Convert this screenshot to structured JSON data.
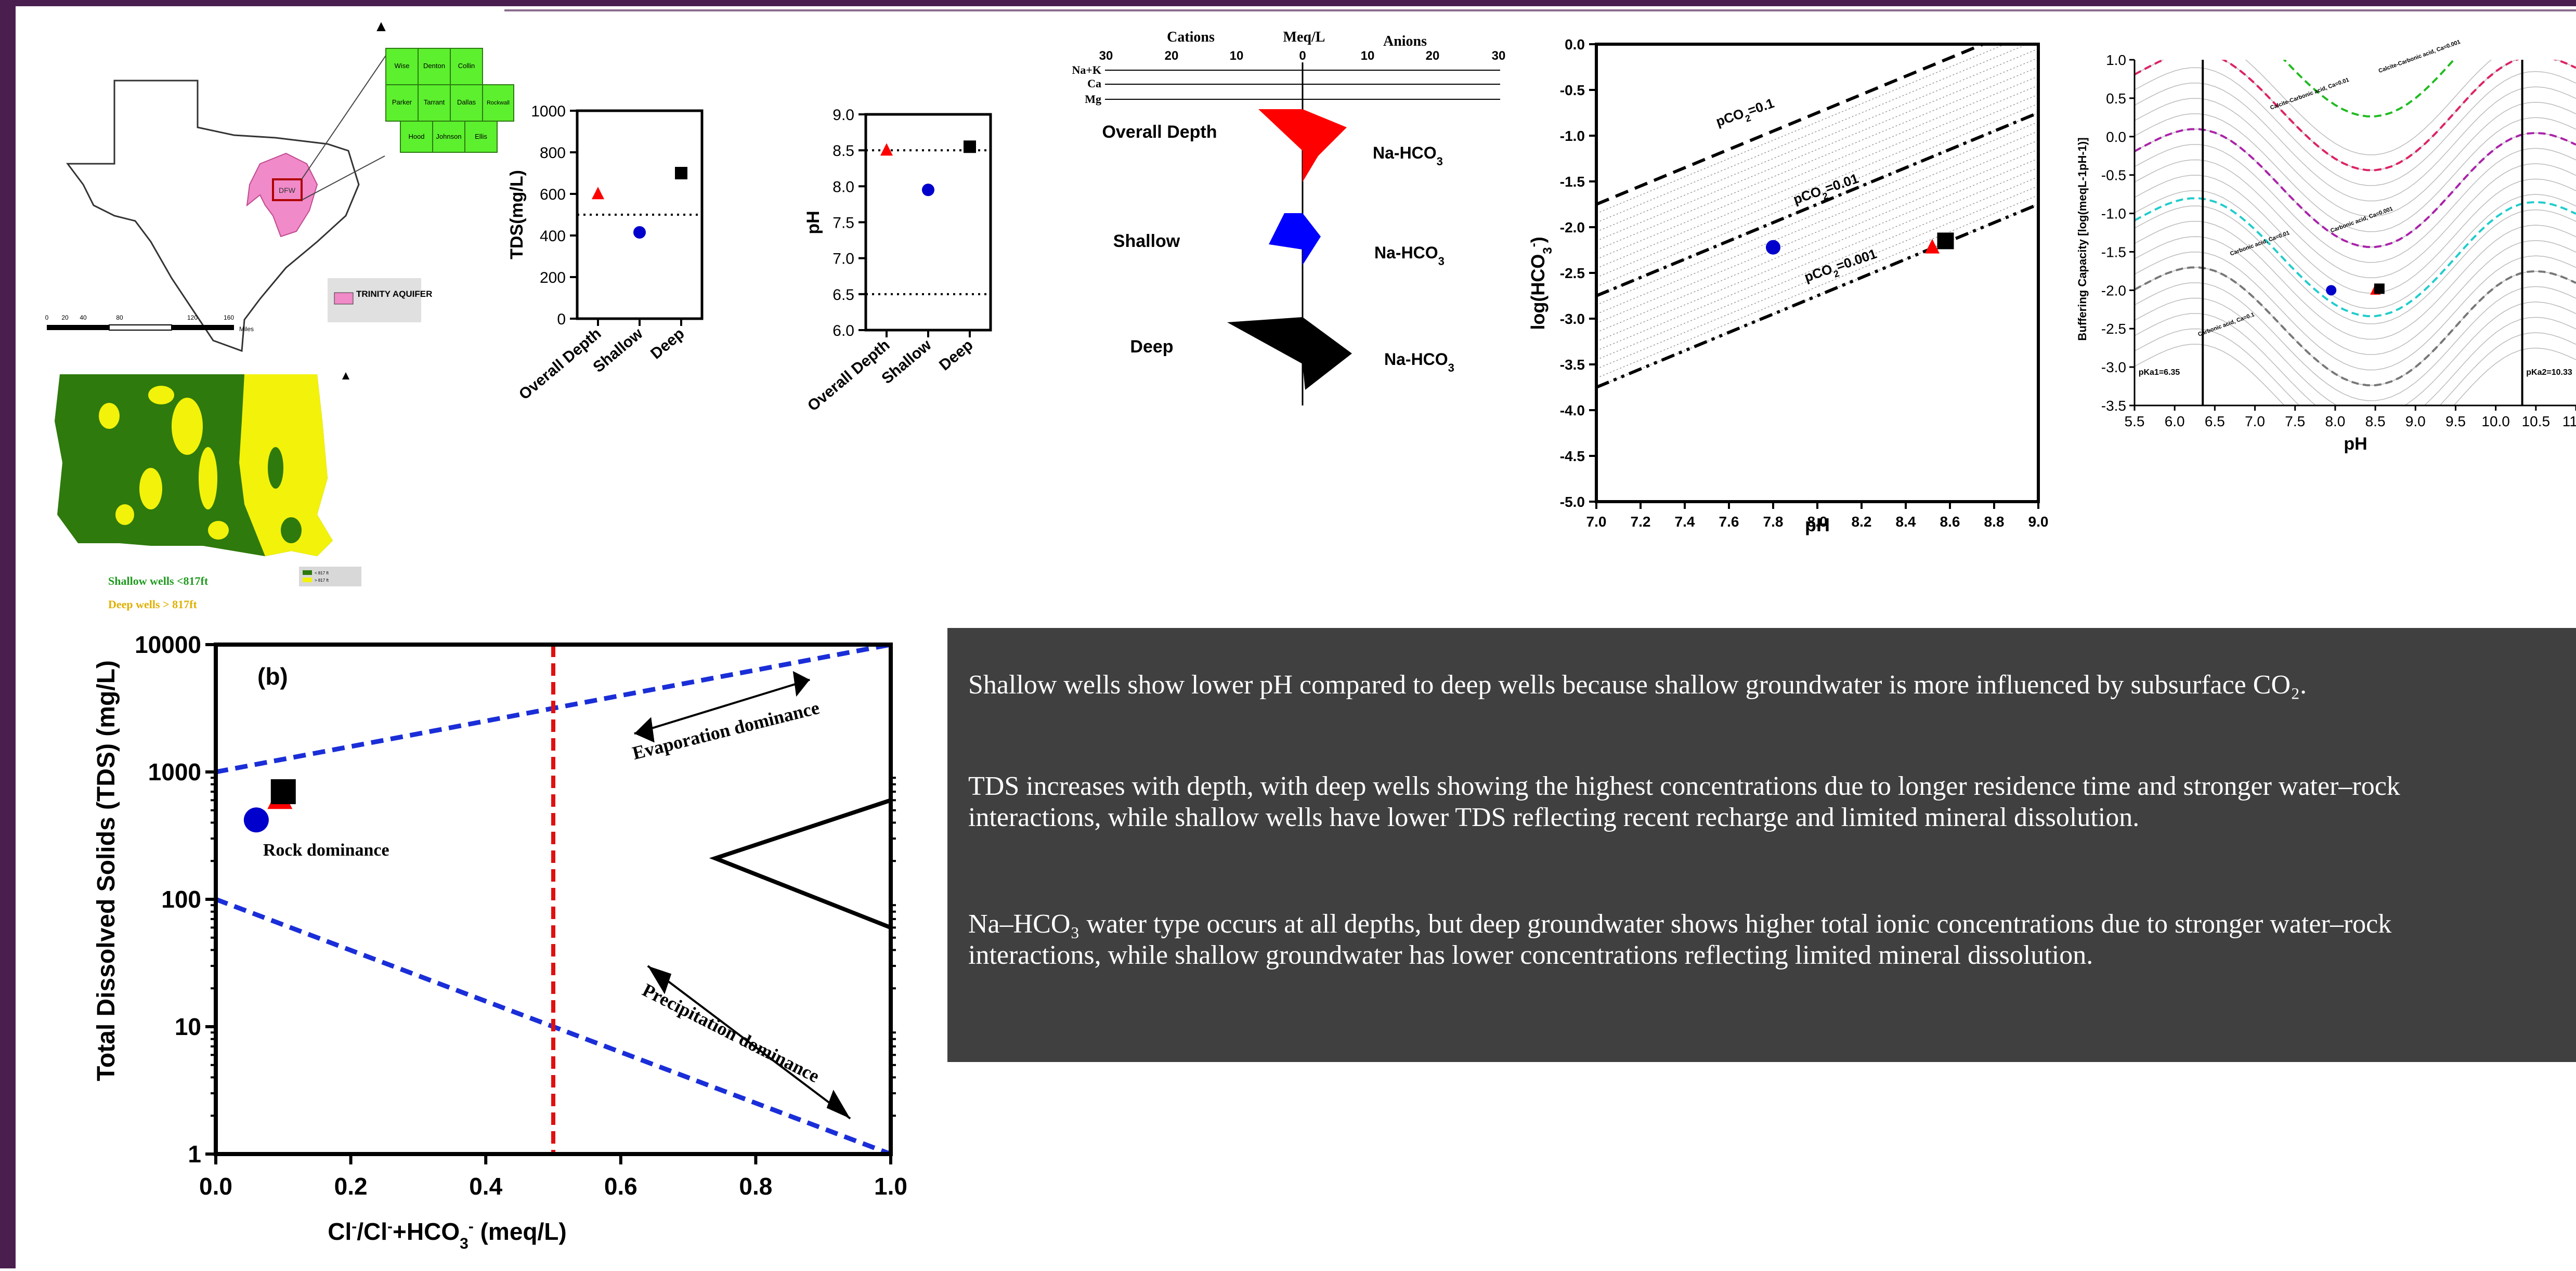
{
  "map": {
    "legend_label": "TRINITY AQUIFER",
    "north_symbol": "▲",
    "county_labels": [
      "Wise",
      "Denton",
      "Collin",
      "Parker",
      "Tarrant",
      "Dallas",
      "Hood",
      "Johnson",
      "Ellis",
      "Rockwall"
    ],
    "scale_ticks": [
      "0",
      "20",
      "40",
      "80",
      "120",
      "160"
    ],
    "scale_unit": "Miles",
    "highlight_label": "DFW",
    "colors": {
      "texas": "#ffffff",
      "aquifer": "#f08ac8",
      "counties": "#5cf02e"
    }
  },
  "depth_map": {
    "shallow_label": "Shallow wells <817ft",
    "deep_label": "Deep wells > 817ft",
    "legend_items": [
      "< 817 ft",
      "> 817 ft"
    ],
    "colors": {
      "shallow": "#2e7a0c",
      "deep": "#f2f20a"
    }
  },
  "tds_panel": {
    "ylabel": "TDS(mg/L)",
    "yticks": [
      "0",
      "200",
      "400",
      "600",
      "800",
      "1000"
    ],
    "categories": [
      "Overall Depth",
      "Shallow",
      "Deep"
    ]
  },
  "ph_panel": {
    "ylabel": "pH",
    "yticks": [
      "6.0",
      "6.5",
      "7.0",
      "7.5",
      "8.0",
      "8.5",
      "9.0"
    ],
    "categories": [
      "Overall Depth",
      "Shallow",
      "Deep"
    ]
  },
  "stiff": {
    "cations_label": "Cations",
    "meq_label": "Meq/L",
    "anions_label": "Anions",
    "scale_ticks": [
      "30",
      "20",
      "10",
      "0",
      "10",
      "20",
      "30"
    ],
    "ions_left": [
      "Na+K",
      "Ca",
      "Mg"
    ],
    "rows": [
      {
        "label": "Overall Depth",
        "type": "Na-HCO",
        "sub": "3",
        "color": "#ff0000"
      },
      {
        "label": "Shallow",
        "type": "Na-HCO",
        "sub": "3",
        "color": "#0000ff"
      },
      {
        "label": "Deep",
        "type": "Na-HCO",
        "sub": "3",
        "color": "#000000"
      }
    ]
  },
  "pco2_panel": {
    "ylabel": "log(HCO",
    "ylabel_sub": "3",
    "ylabel_sup": "-",
    "ylabel_end": ")",
    "xlabel": "pH",
    "line_labels": [
      "pCO",
      "pCO",
      "pCO"
    ],
    "line_values": [
      "=0.1",
      "=0.01",
      "=0.001"
    ],
    "line_sub": "2"
  },
  "buffer_panel": {
    "ylabel": "Buffering Capacity [log(meqL-1pH-1)]",
    "xlabel": "pH",
    "pka1": "pKa1=6.35",
    "pka2": "pKa2=10.33",
    "curve_labels": [
      "Calcite-Carbonic acid, Ca=0.001",
      "Calcite-Carbonic acid, Ca=0.01",
      "Carbonic acid, Ca=0.001",
      "Carbonic acid, Ca=0.01",
      "Carbonic acid, Ca=0.1"
    ]
  },
  "gibbs": {
    "panel_label": "(b)",
    "ylabel": "Total Dissolved Solids (TDS) (mg/L)",
    "xlabel_parts": [
      "Cl",
      "-",
      "/Cl",
      "-",
      "+HCO",
      "3",
      "-",
      " (meq/L)"
    ],
    "annotations": {
      "evaporation": "Evaporation dominance",
      "rock": "Rock dominance",
      "precipitation": "Precipitation dominance"
    }
  },
  "notes": [
    {
      "text": "Shallow wells show lower pH compared to deep wells because shallow groundwater is more influenced by  subsurface CO₂."
    },
    {
      "line1": "TDS increases with depth, with deep wells showing the highest concentrations due to longer residence time and stronger water–rock",
      "line2": "interactions, while shallow wells have lower TDS reflecting recent recharge and limited mineral dissolution."
    },
    {
      "line1": "Na–HCO₃ water type occurs at all depths, but deep groundwater shows higher total ionic concentrations due to stronger water–rock",
      "line2": "interactions, while shallow groundwater has lower concentrations reflecting limited mineral dissolution."
    }
  ],
  "chart_data": [
    {
      "type": "scatter",
      "title": "",
      "xlabel": "",
      "ylabel": "TDS(mg/L)",
      "categories": [
        "Overall Depth",
        "Shallow",
        "Deep"
      ],
      "series": [
        {
          "name": "Overall Depth",
          "marker": "triangle",
          "color": "#ff0000",
          "values": [
            600
          ]
        },
        {
          "name": "Shallow",
          "marker": "circle",
          "color": "#0000cc",
          "values": [
            415
          ]
        },
        {
          "name": "Deep",
          "marker": "square",
          "color": "#000000",
          "values": [
            700
          ]
        }
      ],
      "reference_line": 500,
      "ylim": [
        0,
        1000
      ]
    },
    {
      "type": "scatter",
      "title": "",
      "xlabel": "",
      "ylabel": "pH",
      "categories": [
        "Overall Depth",
        "Shallow",
        "Deep"
      ],
      "series": [
        {
          "name": "Overall Depth",
          "marker": "triangle",
          "color": "#ff0000",
          "values": [
            8.5
          ]
        },
        {
          "name": "Shallow",
          "marker": "circle",
          "color": "#0000cc",
          "values": [
            7.95
          ]
        },
        {
          "name": "Deep",
          "marker": "square",
          "color": "#000000",
          "values": [
            8.55
          ]
        }
      ],
      "reference_lines": [
        6.5,
        8.5
      ],
      "ylim": [
        6.0,
        9.0
      ]
    },
    {
      "type": "line",
      "xlabel": "pH",
      "ylabel": "log(HCO3-)",
      "xlim": [
        7.0,
        9.0
      ],
      "ylim": [
        -5.0,
        0.0
      ],
      "xticks": [
        "7.0",
        "7.2",
        "7.4",
        "7.6",
        "7.8",
        "8.0",
        "8.2",
        "8.4",
        "8.6",
        "8.8",
        "9.0"
      ],
      "yticks": [
        "0.0",
        "-0.5",
        "-1.0",
        "-1.5",
        "-2.0",
        "-2.5",
        "-3.0",
        "-3.5",
        "-4.0",
        "-4.5",
        "-5.0"
      ],
      "lines": [
        {
          "label": "pCO2=0.1",
          "x": [
            7.0,
            9.0
          ],
          "y": [
            -1.75,
            0.25
          ]
        },
        {
          "label": "pCO2=0.01",
          "x": [
            7.0,
            9.0
          ],
          "y": [
            -2.75,
            -0.75
          ]
        },
        {
          "label": "pCO2=0.001",
          "x": [
            7.0,
            9.0
          ],
          "y": [
            -3.75,
            -1.75
          ]
        }
      ],
      "points": [
        {
          "name": "Shallow",
          "marker": "circle",
          "color": "#0000cc",
          "x": 7.8,
          "y": -2.22
        },
        {
          "name": "Overall Depth",
          "marker": "triangle",
          "color": "#ff0000",
          "x": 8.52,
          "y": -2.22
        },
        {
          "name": "Deep",
          "marker": "square",
          "color": "#000000",
          "x": 8.58,
          "y": -2.15
        }
      ]
    },
    {
      "type": "line",
      "xlabel": "pH",
      "ylabel": "Buffering Capacity [log(meqL-1pH-1)]",
      "xlim": [
        5.5,
        11.0
      ],
      "ylim": [
        -3.5,
        1.0
      ],
      "xticks": [
        "5.5",
        "6.0",
        "6.5",
        "7.0",
        "7.5",
        "8.0",
        "8.5",
        "9.0",
        "9.5",
        "10.0",
        "10.5",
        "11.0"
      ],
      "yticks": [
        "1.0",
        "0.5",
        "0.0",
        "-0.5",
        "-1.0",
        "-1.5",
        "-2.0",
        "-2.5",
        "-3.0",
        "-3.5"
      ],
      "vertical_lines": [
        6.35,
        10.33
      ],
      "points": [
        {
          "name": "Shallow",
          "marker": "circle",
          "color": "#0000cc",
          "x": 7.95,
          "y": -2.0
        },
        {
          "name": "Overall Depth",
          "marker": "triangle",
          "color": "#ff0000",
          "x": 8.5,
          "y": -2.0
        },
        {
          "name": "Deep",
          "marker": "square",
          "color": "#000000",
          "x": 8.55,
          "y": -1.98
        }
      ]
    },
    {
      "type": "scatter",
      "xlabel": "Cl-/Cl-+HCO3- (meq/L)",
      "ylabel": "Total Dissolved Solids (TDS) (mg/L)",
      "xlim": [
        0.0,
        1.0
      ],
      "ylim": [
        1,
        10000
      ],
      "yscale": "log",
      "xticks": [
        "0.0",
        "0.2",
        "0.4",
        "0.6",
        "0.8",
        "1.0"
      ],
      "yticks": [
        "1",
        "10",
        "100",
        "1000",
        "10000"
      ],
      "boundaries": [
        {
          "x": [
            0.0,
            1.0
          ],
          "y": [
            1000,
            10000
          ]
        },
        {
          "x": [
            0.0,
            1.0
          ],
          "y": [
            100,
            1
          ]
        }
      ],
      "vertical_line": 0.5,
      "points": [
        {
          "name": "Shallow",
          "marker": "circle",
          "color": "#0000cc",
          "x": 0.06,
          "y": 420
        },
        {
          "name": "Overall Depth",
          "marker": "triangle",
          "color": "#ff0000",
          "x": 0.095,
          "y": 620
        },
        {
          "name": "Deep",
          "marker": "square",
          "color": "#000000",
          "x": 0.1,
          "y": 700
        }
      ]
    }
  ]
}
